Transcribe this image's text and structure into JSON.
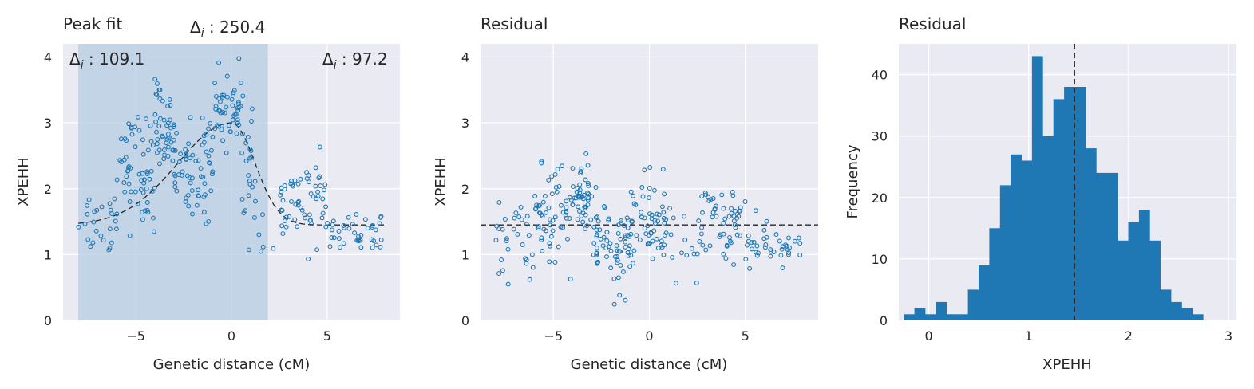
{
  "colors": {
    "panel_bg": "#EAEAF2",
    "grid": "#FFFFFF",
    "series": "#1F77B4",
    "shade": "#B4CCE2",
    "dashed": "#262626"
  },
  "chart_data": [
    {
      "type": "scatter",
      "title": "Peak fit",
      "xlabel": "Genetic distance (cM)",
      "ylabel": "XPEHH",
      "xlim": [
        -8.8,
        8.8
      ],
      "ylim": [
        0,
        4.2
      ],
      "xticks": [
        -5,
        0,
        5
      ],
      "yticks": [
        0,
        1,
        2,
        3,
        4
      ],
      "xtick_labels": [
        "−5",
        "0",
        "5"
      ],
      "ytick_labels": [
        "0",
        "1",
        "2",
        "3",
        "4"
      ],
      "shaded_region": [
        -8,
        1.9
      ],
      "annotations": {
        "center": "Δ",
        "center_value": " : 250.4",
        "left": "Δ",
        "left_value": " : 109.1",
        "right": "Δ",
        "right_value": " : 97.2",
        "subscript": "i"
      },
      "fit_curve": {
        "peak_x": 0,
        "peak_y": 3.0,
        "baseline": 1.45,
        "left_scale": 5.0,
        "right_scale": 2.2,
        "x_start": -8,
        "x_end": 8
      },
      "clusters": [
        {
          "x_range": [
            -8,
            -6
          ],
          "y_mean": 1.5,
          "y_spread": 0.45,
          "n": 25
        },
        {
          "x_range": [
            -6,
            -4
          ],
          "y_mean": 2.3,
          "y_spread": 0.7,
          "n": 60
        },
        {
          "x_range": [
            -4,
            -3
          ],
          "y_mean": 2.9,
          "y_spread": 0.6,
          "n": 45
        },
        {
          "x_range": [
            -3,
            -1
          ],
          "y_mean": 2.3,
          "y_spread": 0.6,
          "n": 60
        },
        {
          "x_range": [
            -1,
            0.5
          ],
          "y_mean": 3.2,
          "y_spread": 0.45,
          "n": 50
        },
        {
          "x_range": [
            0.5,
            1.3
          ],
          "y_mean": 2.3,
          "y_spread": 0.8,
          "n": 25
        },
        {
          "x_range": [
            1.3,
            2.5
          ],
          "y_mean": 1.2,
          "y_spread": 0.3,
          "n": 5
        },
        {
          "x_range": [
            2.5,
            5
          ],
          "y_mean": 1.8,
          "y_spread": 0.5,
          "n": 60
        },
        {
          "x_range": [
            5,
            8
          ],
          "y_mean": 1.3,
          "y_spread": 0.3,
          "n": 40
        }
      ]
    },
    {
      "type": "scatter",
      "title": "Residual",
      "xlabel": "Genetic distance (cM)",
      "ylabel": "XPEHH",
      "xlim": [
        -8.8,
        8.8
      ],
      "ylim": [
        0,
        4.2
      ],
      "xticks": [
        -5,
        0,
        5
      ],
      "yticks": [
        0,
        1,
        2,
        3,
        4
      ],
      "xtick_labels": [
        "−5",
        "0",
        "5"
      ],
      "ytick_labels": [
        "0",
        "1",
        "2",
        "3",
        "4"
      ],
      "hline": 1.45,
      "clusters": [
        {
          "x_range": [
            -8,
            -6
          ],
          "y_mean": 1.2,
          "y_spread": 0.45,
          "n": 30
        },
        {
          "x_range": [
            -6,
            -4
          ],
          "y_mean": 1.55,
          "y_spread": 0.6,
          "n": 60
        },
        {
          "x_range": [
            -4,
            -3
          ],
          "y_mean": 1.9,
          "y_spread": 0.55,
          "n": 45
        },
        {
          "x_range": [
            -3,
            -1
          ],
          "y_mean": 1.1,
          "y_spread": 0.5,
          "n": 70
        },
        {
          "x_range": [
            -1,
            1
          ],
          "y_mean": 1.5,
          "y_spread": 0.55,
          "n": 60
        },
        {
          "x_range": [
            1,
            2.5
          ],
          "y_mean": 1.1,
          "y_spread": 0.6,
          "n": 12
        },
        {
          "x_range": [
            2.5,
            5
          ],
          "y_mean": 1.5,
          "y_spread": 0.45,
          "n": 55
        },
        {
          "x_range": [
            5,
            8
          ],
          "y_mean": 1.1,
          "y_spread": 0.3,
          "n": 40
        }
      ]
    },
    {
      "type": "bar",
      "title": "Residual",
      "xlabel": "XPEHH",
      "ylabel": "Frequency",
      "xlim": [
        -0.3,
        3.08
      ],
      "ylim": [
        0,
        45
      ],
      "xticks": [
        0,
        1,
        2,
        3
      ],
      "yticks": [
        0,
        10,
        20,
        30,
        40
      ],
      "xtick_labels": [
        "0",
        "1",
        "2",
        "3"
      ],
      "ytick_labels": [
        "0",
        "10",
        "20",
        "30",
        "40"
      ],
      "bin_start": -0.25,
      "bin_width": 0.107,
      "values": [
        1,
        2,
        1,
        3,
        1,
        1,
        5,
        9,
        15,
        22,
        27,
        26,
        43,
        30,
        36,
        38,
        38,
        28,
        24,
        24,
        13,
        16,
        18,
        13,
        5,
        3,
        2,
        1
      ],
      "vline": 1.46
    }
  ]
}
